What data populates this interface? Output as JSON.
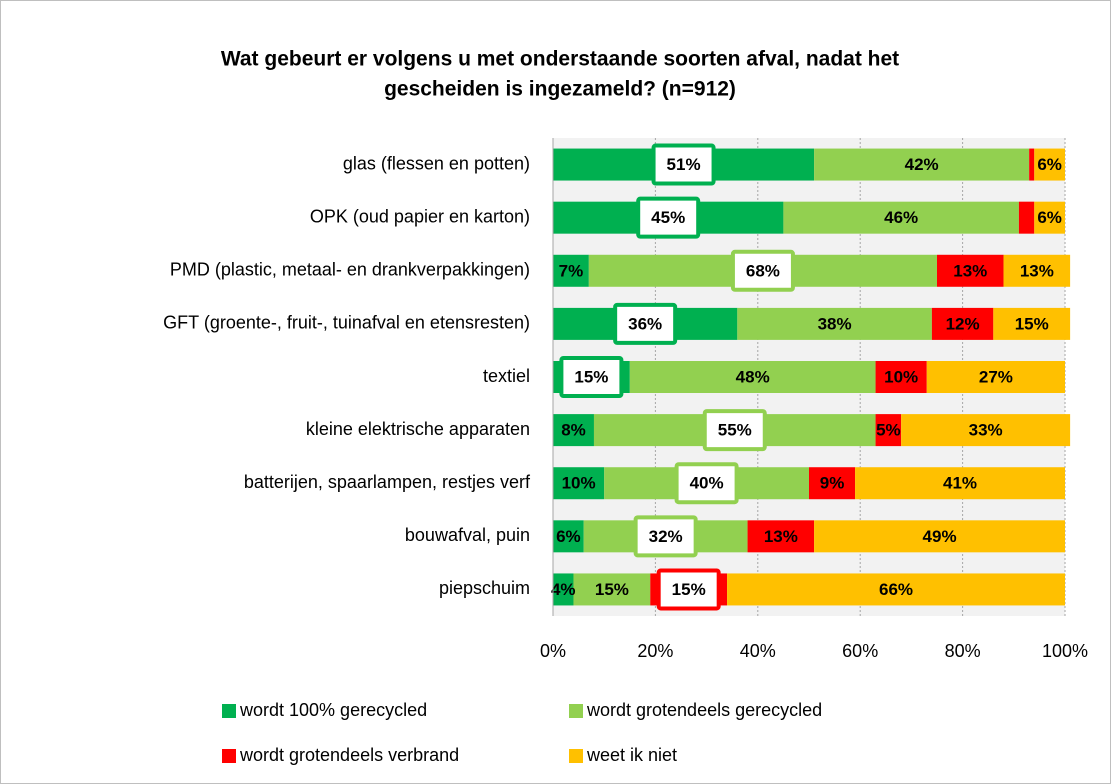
{
  "chart_data": {
    "type": "stacked-barh",
    "title": [
      "Wat gebeurt er volgens u met onderstaande soorten afval, nadat het",
      "gescheiden is ingezameld? (n=912)"
    ],
    "categories": [
      "glas (flessen en potten)",
      "OPK (oud papier en karton)",
      "PMD (plastic, metaal- en drankverpakkingen)",
      "GFT (groente-, fruit-, tuinafval en etensresten)",
      "textiel",
      "kleine elektrische apparaten",
      "batterijen, spaarlampen, restjes verf",
      "bouwafval, puin",
      "piepschuim"
    ],
    "series": [
      {
        "name": "wordt 100% gerecycled",
        "color": "#00b050",
        "values": [
          51,
          45,
          7,
          36,
          15,
          8,
          10,
          6,
          4
        ],
        "value_labels": [
          "51%",
          "45%",
          "7%",
          "36%",
          "15%",
          "8%",
          "10%",
          "6%",
          "4%"
        ]
      },
      {
        "name": "wordt grotendeels gerecycled",
        "color": "#92d050",
        "values": [
          42,
          46,
          68,
          38,
          48,
          55,
          40,
          32,
          15
        ],
        "value_labels": [
          "42%",
          "46%",
          "68%",
          "38%",
          "48%",
          "55%",
          "40%",
          "32%",
          "15%"
        ]
      },
      {
        "name": "wordt grotendeels verbrand",
        "color": "#ff0000",
        "values": [
          1,
          3,
          13,
          12,
          10,
          5,
          9,
          13,
          15
        ],
        "value_labels": [
          null,
          null,
          "13%",
          "12%",
          "10%",
          "5%",
          "9%",
          "13%",
          "15%"
        ]
      },
      {
        "name": "weet ik niet",
        "color": "#ffc000",
        "values": [
          6,
          6,
          13,
          15,
          27,
          33,
          41,
          49,
          66
        ],
        "value_labels": [
          "6%",
          "6%",
          "13%",
          "15%",
          "27%",
          "33%",
          "41%",
          "49%",
          "66%"
        ]
      }
    ],
    "highlighted": [
      0,
      0,
      1,
      0,
      0,
      1,
      1,
      1,
      2
    ],
    "xlim": [
      0,
      100
    ],
    "xticks": [
      {
        "value": 0,
        "label": "0%"
      },
      {
        "value": 20,
        "label": "20%"
      },
      {
        "value": 40,
        "label": "40%"
      },
      {
        "value": 60,
        "label": "60%"
      },
      {
        "value": 80,
        "label": "80%"
      },
      {
        "value": 100,
        "label": "100%"
      }
    ],
    "grid": true
  }
}
